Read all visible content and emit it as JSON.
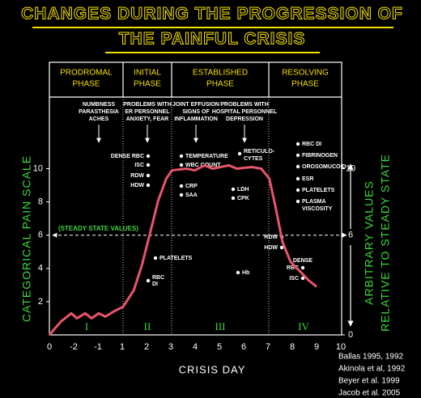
{
  "chart_data": {
    "type": "line",
    "title": [
      "CHANGES DURING THE PROGRESSION OF",
      "THE PAINFUL CRISIS"
    ],
    "x_label": "CRISIS DAY",
    "y_label": "CATEGORICAL PAIN SCALE",
    "y2_label": [
      "ARBITRARY VALUES",
      "RELATIVE TO STEADY STATE"
    ],
    "categories": [
      "0",
      "-2",
      "-1",
      "1",
      "2",
      "3",
      "4",
      "5",
      "6",
      "7",
      "8",
      "9",
      "10"
    ],
    "xlim": [
      0,
      12
    ],
    "ylim": [
      0,
      16.4
    ],
    "yticks": [
      2,
      4,
      6,
      8,
      10
    ],
    "y2lim": [
      0,
      16.4
    ],
    "y2ticks": [
      0,
      6,
      10
    ],
    "series": [
      {
        "color": "#e8556b",
        "x": [
          0,
          0.47,
          0.9,
          1.13,
          1.47,
          1.73,
          2.03,
          2.3,
          2.63,
          3.03,
          3.47,
          3.8,
          4.13,
          4.47,
          4.8,
          5.03,
          5.63,
          5.97,
          6.37,
          6.7,
          7.03,
          7.37,
          7.7,
          8.3,
          8.7,
          9.03,
          9.3,
          9.57,
          9.9,
          10.37,
          10.63,
          10.97
        ],
        "values": [
          0,
          0.8,
          1.3,
          1.0,
          1.3,
          1.0,
          1.3,
          1.1,
          1.4,
          1.7,
          2.7,
          4.2,
          6.1,
          8.1,
          9.4,
          9.9,
          10.0,
          9.9,
          10.2,
          10.0,
          10.1,
          10.2,
          10.0,
          10.1,
          10.0,
          9.4,
          7.6,
          5.6,
          4.4,
          3.7,
          3.3,
          2.9
        ]
      }
    ],
    "steady_state": {
      "label": "(STEADY STATE VALUES)",
      "value": 6
    },
    "phases": [
      [
        "PRODROMAL",
        "PHASE"
      ],
      [
        "INITIAL",
        "PHASE"
      ],
      [
        "ESTABLISHED",
        "PHASE"
      ],
      [
        "RESOLVING",
        "PHASE"
      ]
    ],
    "stages": [
      "I",
      "II",
      "III",
      "IV"
    ],
    "events": [
      [
        "NUMBNESS",
        "PARASTHESIA",
        "ACHES"
      ],
      [
        "PROBLEMS WITH",
        "ER PERSONNEL",
        "ANXIETY, FEAR"
      ],
      [
        "JOINT EFFUSION",
        "SIGNS OF",
        "INFLAMMATION"
      ],
      [
        "PROBLEMS WITH",
        "HOSPITAL PERSONNEL",
        "DEPRESSION"
      ]
    ],
    "markers": [
      "DENSE RBC",
      "ISC",
      "RDW",
      "HDW",
      "PLATELETS",
      "RBC",
      "DI",
      "TEMPERATURE",
      "WBC COUNT",
      "CRP",
      "SAA",
      "RETICULO-",
      "CYTES",
      "LDH",
      "CPK",
      "Hb",
      "RBC DI",
      "FIBRINOGEN",
      "OROSOMUCOID",
      "ESR",
      "PLATELETS",
      "PLASMA",
      "VISCOSITY",
      "RDW",
      "HDW",
      "DENSE",
      "RBC",
      "ISC"
    ],
    "references": [
      "Ballas 1995, 1992",
      "Akinola et al, 1992",
      "Beyer et al. 1999",
      "Jacob et al. 2005"
    ]
  }
}
